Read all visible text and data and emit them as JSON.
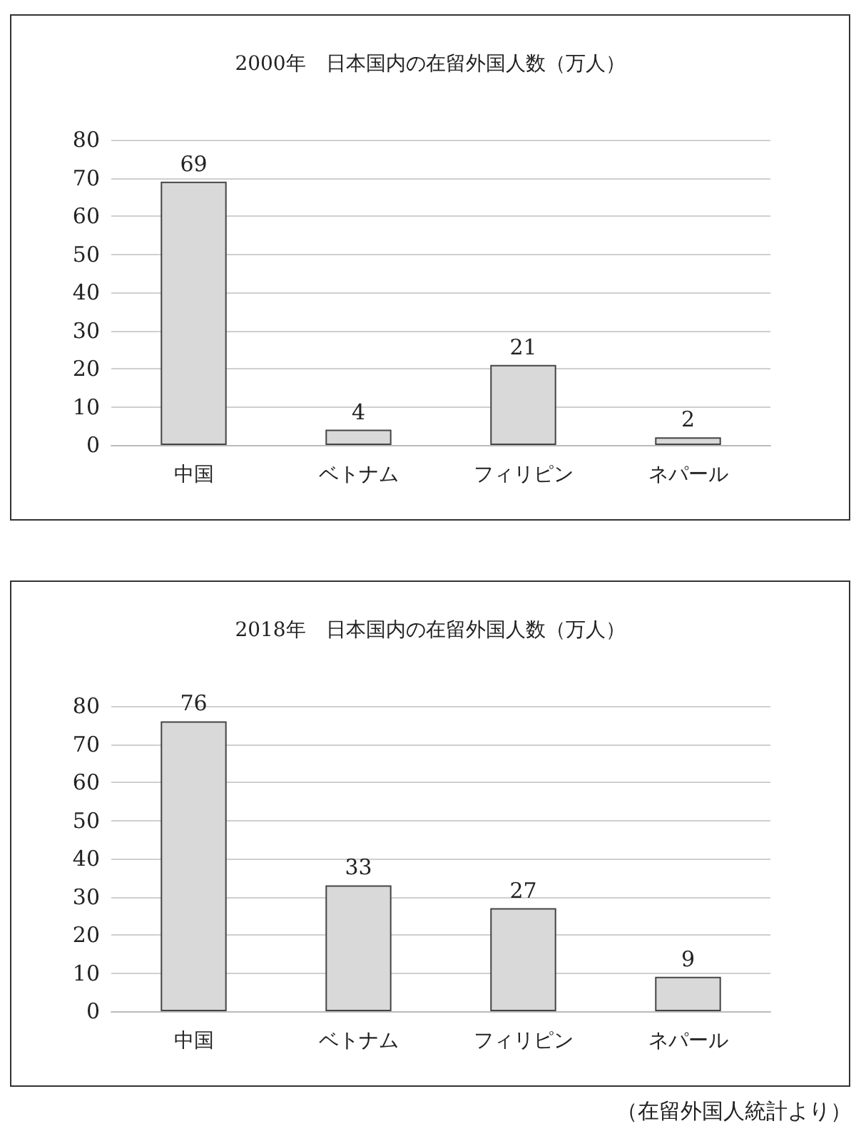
{
  "chart_data": [
    {
      "type": "bar",
      "title": "2000年　日本国内の在留外国人数（万人）",
      "categories": [
        "中国",
        "ベトナム",
        "フィリピン",
        "ネパール"
      ],
      "values": [
        69,
        4,
        21,
        2
      ],
      "color": "#d9d9d9",
      "ylim": [
        0,
        80
      ],
      "yticks": [
        0,
        10,
        20,
        30,
        40,
        50,
        60,
        70,
        80
      ],
      "grid": "y",
      "data_labels": true
    },
    {
      "type": "bar",
      "title": "2018年　日本国内の在留外国人数（万人）",
      "categories": [
        "中国",
        "ベトナム",
        "フィリピン",
        "ネパール"
      ],
      "values": [
        76,
        33,
        27,
        9
      ],
      "color": "#d9d9d9",
      "ylim": [
        0,
        80
      ],
      "yticks": [
        0,
        10,
        20,
        30,
        40,
        50,
        60,
        70,
        80
      ],
      "grid": "y",
      "data_labels": true,
      "annotations": [
        "（在留外国人統計より）"
      ]
    }
  ]
}
